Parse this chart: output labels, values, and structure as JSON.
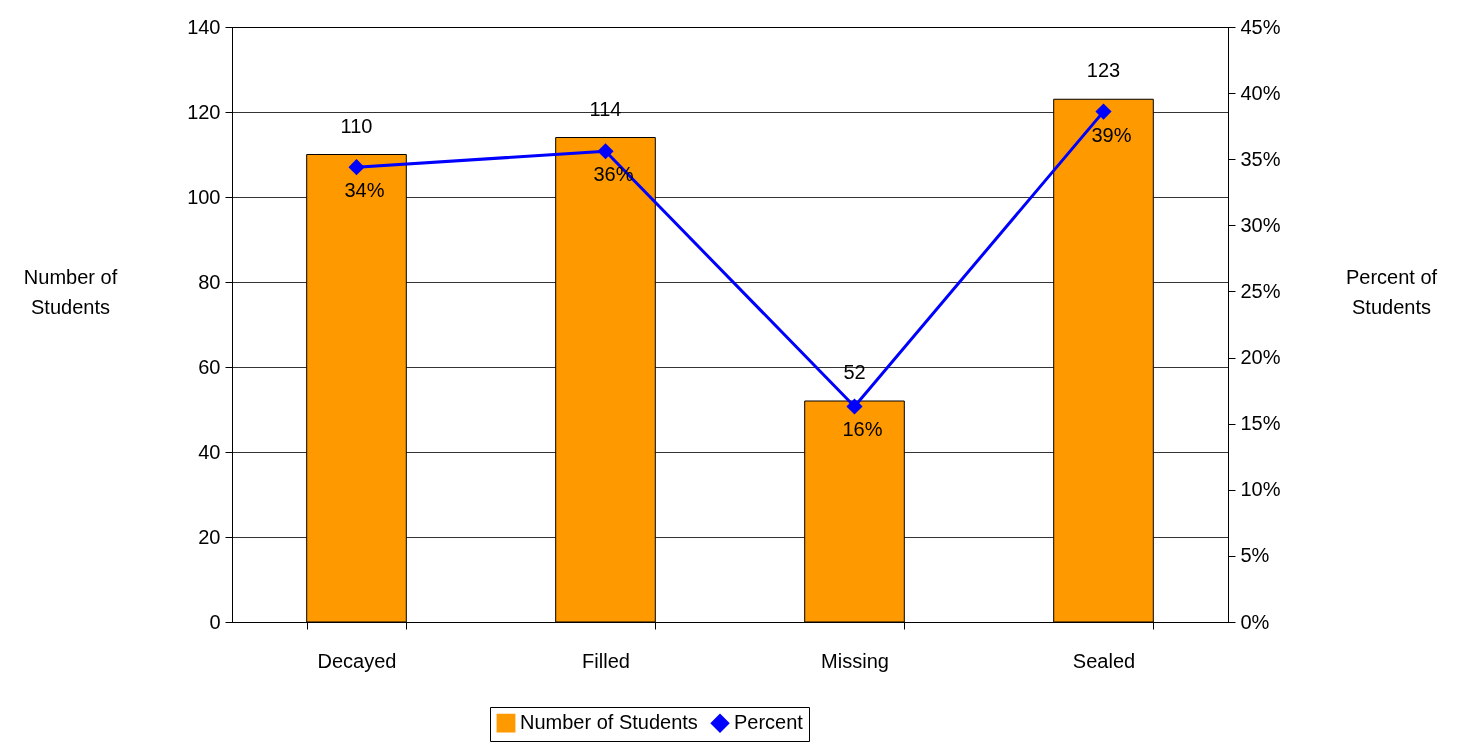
{
  "chart_data": {
    "type": "bar",
    "categories": [
      "Decayed",
      "Filled",
      "Missing",
      "Sealed"
    ],
    "series": [
      {
        "name": "Number of Students",
        "color": "#ff9900",
        "values": [
          110,
          114,
          52,
          123
        ],
        "value_labels": [
          "110",
          "114",
          "52",
          "123"
        ]
      },
      {
        "name": "Percent",
        "type": "line",
        "axis": "y2",
        "color": "#0000ff",
        "values": [
          34.4,
          35.6,
          16.3,
          38.6
        ],
        "value_labels": [
          "34%",
          "36%",
          "16%",
          "39%"
        ]
      }
    ],
    "ylabel": "Number of Students",
    "y2label": "Percent of Students",
    "ylim": [
      0,
      140
    ],
    "yticks": [
      0,
      20,
      40,
      60,
      80,
      100,
      120,
      140
    ],
    "y2lim": [
      0,
      45
    ],
    "y2ticks": [
      {
        "value": 0,
        "label": "0%"
      },
      {
        "value": 5,
        "label": "5%"
      },
      {
        "value": 10,
        "label": "10%"
      },
      {
        "value": 15,
        "label": "15%"
      },
      {
        "value": 20,
        "label": "20%"
      },
      {
        "value": 25,
        "label": "25%"
      },
      {
        "value": 30,
        "label": "30%"
      },
      {
        "value": 35,
        "label": "35%"
      },
      {
        "value": 40,
        "label": "40%"
      },
      {
        "value": 45,
        "label": "45%"
      }
    ],
    "grid": "y",
    "legend": "bottom",
    "marker": "diamond",
    "line_style": "solid"
  }
}
